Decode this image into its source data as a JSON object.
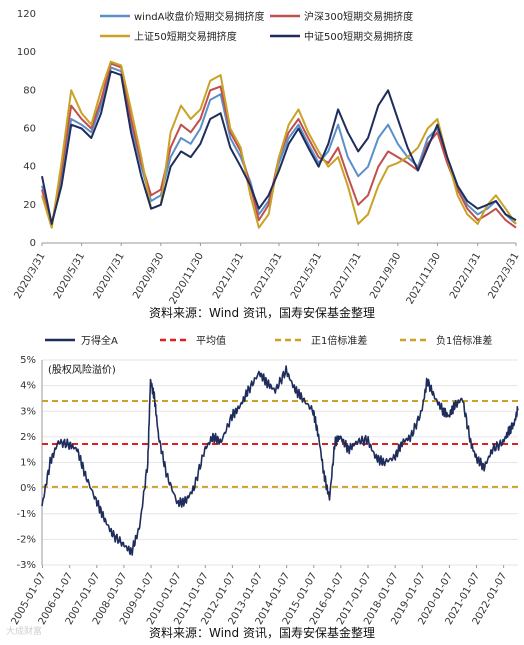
{
  "chart_data": [
    {
      "type": "line",
      "title": "",
      "xlabel": "",
      "ylabel": "",
      "ylim": [
        0,
        120
      ],
      "yticks": [
        0,
        20,
        40,
        60,
        80,
        100,
        120
      ],
      "x_ticks": [
        "2020/3/31",
        "2020/5/31",
        "2020/7/31",
        "2020/9/30",
        "2020/11/30",
        "2021/1/31",
        "2021/3/31",
        "2021/5/31",
        "2021/7/31",
        "2021/9/30",
        "2021/11/30",
        "2022/1/31",
        "2022/3/31"
      ],
      "grid": false,
      "legend_position": "top",
      "source_note": "资料来源：Wind 资讯，国寿安保基金整理",
      "series": [
        {
          "name": "windA收盘价短期交易拥挤度",
          "color": "#5b8fc9",
          "x": [
            "2020-03-31",
            "2020-04-15",
            "2020-04-30",
            "2020-05-15",
            "2020-05-31",
            "2020-06-15",
            "2020-06-30",
            "2020-07-15",
            "2020-07-31",
            "2020-08-15",
            "2020-08-31",
            "2020-09-15",
            "2020-09-30",
            "2020-10-15",
            "2020-10-31",
            "2020-11-15",
            "2020-11-30",
            "2020-12-15",
            "2020-12-31",
            "2021-01-15",
            "2021-01-31",
            "2021-02-15",
            "2021-02-28",
            "2021-03-15",
            "2021-03-31",
            "2021-04-15",
            "2021-04-30",
            "2021-05-15",
            "2021-05-31",
            "2021-06-15",
            "2021-06-30",
            "2021-07-15",
            "2021-07-31",
            "2021-08-15",
            "2021-08-31",
            "2021-09-15",
            "2021-09-30",
            "2021-10-15",
            "2021-10-31",
            "2021-11-15",
            "2021-11-30",
            "2021-12-15",
            "2021-12-31",
            "2022-01-15",
            "2022-01-31",
            "2022-02-15",
            "2022-02-28",
            "2022-03-15",
            "2022-03-31"
          ],
          "y": [
            30,
            10,
            35,
            65,
            62,
            58,
            72,
            92,
            90,
            62,
            40,
            22,
            25,
            45,
            55,
            52,
            60,
            75,
            78,
            55,
            45,
            32,
            15,
            22,
            42,
            55,
            62,
            52,
            42,
            48,
            62,
            45,
            35,
            40,
            55,
            62,
            52,
            45,
            40,
            55,
            60,
            45,
            30,
            20,
            15,
            18,
            22,
            15,
            10
          ]
        },
        {
          "name": "沪深300短期交易拥挤度",
          "color": "#c0504d",
          "x": [
            "2020-03-31",
            "2020-04-15",
            "2020-04-30",
            "2020-05-15",
            "2020-05-31",
            "2020-06-15",
            "2020-06-30",
            "2020-07-15",
            "2020-07-31",
            "2020-08-15",
            "2020-08-31",
            "2020-09-15",
            "2020-09-30",
            "2020-10-15",
            "2020-10-31",
            "2020-11-15",
            "2020-11-30",
            "2020-12-15",
            "2020-12-31",
            "2021-01-15",
            "2021-01-31",
            "2021-02-15",
            "2021-02-28",
            "2021-03-15",
            "2021-03-31",
            "2021-04-15",
            "2021-04-30",
            "2021-05-15",
            "2021-05-31",
            "2021-06-15",
            "2021-06-30",
            "2021-07-15",
            "2021-07-31",
            "2021-08-15",
            "2021-08-31",
            "2021-09-15",
            "2021-09-30",
            "2021-10-15",
            "2021-10-31",
            "2021-11-15",
            "2021-11-30",
            "2021-12-15",
            "2021-12-31",
            "2022-01-15",
            "2022-01-31",
            "2022-02-15",
            "2022-02-28",
            "2022-03-15",
            "2022-03-31"
          ],
          "y": [
            28,
            9,
            38,
            72,
            65,
            60,
            75,
            94,
            92,
            65,
            42,
            25,
            28,
            50,
            62,
            58,
            65,
            80,
            82,
            58,
            48,
            30,
            12,
            20,
            45,
            58,
            65,
            55,
            45,
            42,
            50,
            35,
            20,
            25,
            40,
            48,
            45,
            42,
            38,
            52,
            58,
            42,
            28,
            18,
            12,
            15,
            18,
            12,
            8
          ]
        },
        {
          "name": "上证50短期交易拥挤度",
          "color": "#c9a227",
          "x": [
            "2020-03-31",
            "2020-04-15",
            "2020-04-30",
            "2020-05-15",
            "2020-05-31",
            "2020-06-15",
            "2020-06-30",
            "2020-07-15",
            "2020-07-31",
            "2020-08-15",
            "2020-08-31",
            "2020-09-15",
            "2020-09-30",
            "2020-10-15",
            "2020-10-31",
            "2020-11-15",
            "2020-11-30",
            "2020-12-15",
            "2020-12-31",
            "2021-01-15",
            "2021-01-31",
            "2021-02-15",
            "2021-02-28",
            "2021-03-15",
            "2021-03-31",
            "2021-04-15",
            "2021-04-30",
            "2021-05-15",
            "2021-05-31",
            "2021-06-15",
            "2021-06-30",
            "2021-07-15",
            "2021-07-31",
            "2021-08-15",
            "2021-08-31",
            "2021-09-15",
            "2021-09-30",
            "2021-10-15",
            "2021-10-31",
            "2021-11-15",
            "2021-11-30",
            "2021-12-15",
            "2021-12-31",
            "2022-01-15",
            "2022-01-31",
            "2022-02-15",
            "2022-02-28",
            "2022-03-15",
            "2022-03-31"
          ],
          "y": [
            25,
            8,
            42,
            80,
            68,
            62,
            80,
            95,
            93,
            70,
            45,
            18,
            20,
            58,
            72,
            65,
            70,
            85,
            88,
            60,
            50,
            25,
            8,
            15,
            45,
            62,
            70,
            58,
            48,
            40,
            45,
            30,
            10,
            15,
            30,
            40,
            42,
            45,
            50,
            60,
            65,
            45,
            25,
            15,
            10,
            20,
            25,
            18,
            10
          ]
        },
        {
          "name": "中证500短期交易拥挤度",
          "color": "#1f2d5c",
          "x": [
            "2020-03-31",
            "2020-04-15",
            "2020-04-30",
            "2020-05-15",
            "2020-05-31",
            "2020-06-15",
            "2020-06-30",
            "2020-07-15",
            "2020-07-31",
            "2020-08-15",
            "2020-08-31",
            "2020-09-15",
            "2020-09-30",
            "2020-10-15",
            "2020-10-31",
            "2020-11-15",
            "2020-11-30",
            "2020-12-15",
            "2020-12-31",
            "2021-01-15",
            "2021-01-31",
            "2021-02-15",
            "2021-02-28",
            "2021-03-15",
            "2021-03-31",
            "2021-04-15",
            "2021-04-30",
            "2021-05-15",
            "2021-05-31",
            "2021-06-15",
            "2021-06-30",
            "2021-07-15",
            "2021-07-31",
            "2021-08-15",
            "2021-08-31",
            "2021-09-15",
            "2021-09-30",
            "2021-10-15",
            "2021-10-31",
            "2021-11-15",
            "2021-11-30",
            "2021-12-15",
            "2021-12-31",
            "2022-01-15",
            "2022-01-31",
            "2022-02-15",
            "2022-02-28",
            "2022-03-15",
            "2022-03-31"
          ],
          "y": [
            35,
            10,
            30,
            62,
            60,
            55,
            68,
            90,
            88,
            58,
            35,
            18,
            20,
            40,
            48,
            45,
            52,
            65,
            68,
            50,
            40,
            30,
            18,
            25,
            38,
            52,
            60,
            50,
            40,
            52,
            70,
            58,
            48,
            55,
            72,
            80,
            65,
            50,
            38,
            50,
            62,
            45,
            30,
            22,
            18,
            20,
            22,
            15,
            12
          ]
        }
      ]
    },
    {
      "type": "line",
      "title": "",
      "annotation": "(股权风险溢价)",
      "xlabel": "",
      "ylabel": "",
      "ylim": [
        -0.03,
        0.05
      ],
      "yticks": [
        "-3%",
        "-2%",
        "-1%",
        "0%",
        "1%",
        "2%",
        "3%",
        "4%",
        "5%"
      ],
      "x_ticks": [
        "2005-01-07",
        "2006-01-07",
        "2007-01-07",
        "2008-01-07",
        "2009-01-07",
        "2010-01-07",
        "2011-01-07",
        "2012-01-07",
        "2013-01-07",
        "2014-01-07",
        "2015-01-07",
        "2016-01-07",
        "2017-01-07",
        "2018-01-07",
        "2019-01-07",
        "2020-01-07",
        "2021-01-07",
        "2022-01-07"
      ],
      "grid": true,
      "legend_position": "top",
      "source_note": "资料来源：Wind 资讯，国寿安保基金整理",
      "watermark": "大成财富",
      "series": [
        {
          "name": "万得全A",
          "color": "#1f2d5c",
          "x": [
            2005.0,
            2005.3,
            2005.6,
            2006.0,
            2006.3,
            2006.6,
            2007.0,
            2007.3,
            2007.6,
            2008.0,
            2008.3,
            2008.6,
            2008.9,
            2009.0,
            2009.15,
            2009.3,
            2009.6,
            2010.0,
            2010.3,
            2010.6,
            2011.0,
            2011.3,
            2011.6,
            2012.0,
            2012.3,
            2012.6,
            2013.0,
            2013.3,
            2013.6,
            2014.0,
            2014.3,
            2014.6,
            2015.0,
            2015.2,
            2015.4,
            2015.6,
            2015.8,
            2016.0,
            2016.3,
            2016.6,
            2017.0,
            2017.3,
            2017.6,
            2018.0,
            2018.3,
            2018.6,
            2019.0,
            2019.2,
            2019.5,
            2019.8,
            2020.0,
            2020.2,
            2020.5,
            2020.8,
            2021.0,
            2021.3,
            2021.6,
            2022.0,
            2022.2,
            2022.4,
            2022.55
          ],
          "y": [
            -0.007,
            0.01,
            0.018,
            0.017,
            0.015,
            0.005,
            -0.005,
            -0.012,
            -0.018,
            -0.022,
            -0.025,
            -0.015,
            0.01,
            0.042,
            0.035,
            0.02,
            0.005,
            -0.006,
            -0.005,
            0.0,
            0.015,
            0.02,
            0.018,
            0.028,
            0.032,
            0.038,
            0.045,
            0.041,
            0.038,
            0.046,
            0.039,
            0.035,
            0.03,
            0.02,
            0.005,
            -0.004,
            0.018,
            0.02,
            0.015,
            0.018,
            0.019,
            0.012,
            0.01,
            0.012,
            0.018,
            0.02,
            0.03,
            0.042,
            0.035,
            0.03,
            0.028,
            0.032,
            0.035,
            0.018,
            0.012,
            0.008,
            0.015,
            0.018,
            0.022,
            0.025,
            0.031
          ]
        },
        {
          "name": "平均值",
          "color": "#e02020",
          "dash": "dash",
          "y_const": 0.0172
        },
        {
          "name": "正1倍标准差",
          "color": "#c9a227",
          "dash": "dash",
          "y_const": 0.034
        },
        {
          "name": "负1倍标准差",
          "color": "#c9a227",
          "dash": "dash",
          "y_const": 0.0005
        }
      ]
    }
  ]
}
